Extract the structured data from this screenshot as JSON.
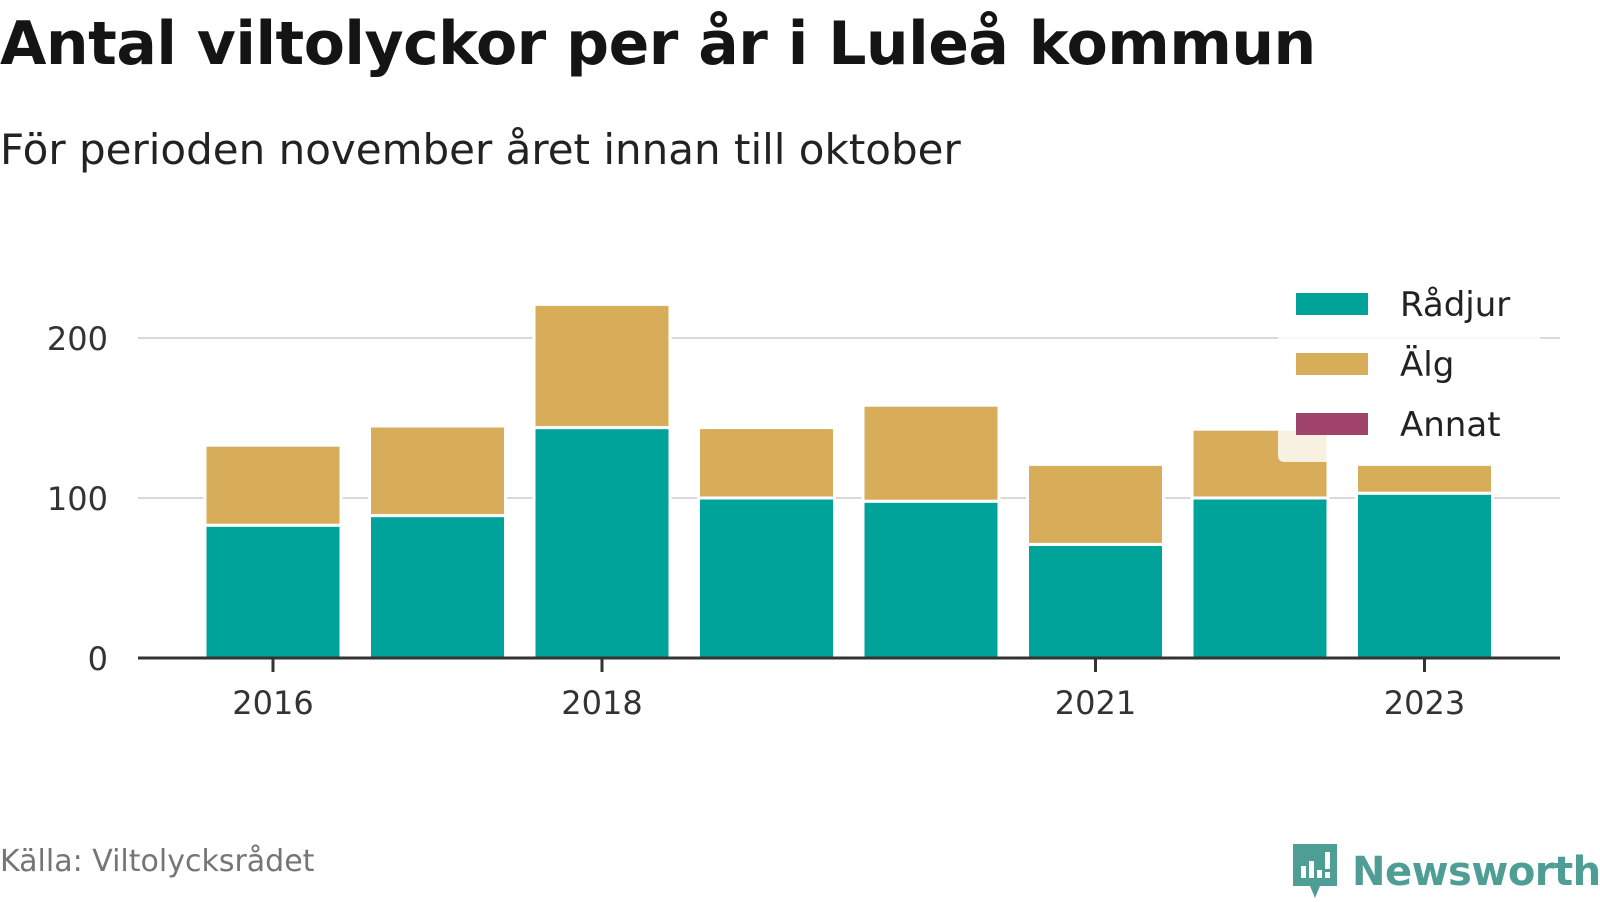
{
  "title": "Antal viltolyckor per år i Luleå kommun",
  "subtitle": "För perioden november året innan till oktober",
  "source": "Källa: Viltolycksrådet",
  "brand": {
    "name": "Newsworthy",
    "icon": "newsworthy-logo-icon",
    "color": "#4e9e96"
  },
  "chart_data": {
    "type": "bar",
    "stacked": true,
    "categories": [
      "2016",
      "2017",
      "2018",
      "2019",
      "2020",
      "2021",
      "2022",
      "2023"
    ],
    "x_tick_labels": [
      "2016",
      "2018",
      "2021",
      "2023"
    ],
    "series": [
      {
        "name": "Rådjur",
        "color": "#00a39a",
        "values": [
          83,
          89,
          144,
          100,
          98,
          71,
          100,
          103
        ]
      },
      {
        "name": "Älg",
        "color": "#d8ad5a",
        "values": [
          50,
          56,
          77,
          44,
          60,
          50,
          43,
          18
        ]
      },
      {
        "name": "Annat",
        "color": "#a0436b",
        "values": [
          0,
          0,
          0,
          0,
          0,
          0,
          0,
          0
        ]
      }
    ],
    "y_ticks": [
      0,
      100,
      200
    ],
    "ylim": [
      0,
      225
    ],
    "xlabel": "",
    "ylabel": "",
    "grid": true,
    "legend": "top-right"
  }
}
